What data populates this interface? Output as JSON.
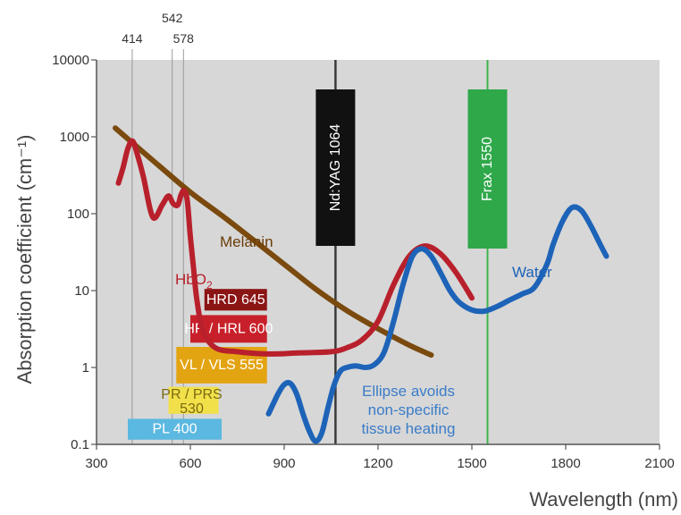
{
  "chart_data": {
    "type": "line",
    "xlabel": "Wavelength (nm)",
    "ylabel": "Absorption coefficient (cm⁻¹)",
    "xlim": [
      300,
      2100
    ],
    "ylim": [
      0.1,
      10000
    ],
    "y_scale": "log",
    "x_ticks": [
      "300",
      "600",
      "900",
      "1200",
      "1500",
      "1800",
      "2100"
    ],
    "y_ticks": [
      {
        "value": 10000,
        "label": "10000"
      },
      {
        "value": 1000,
        "label": "1000"
      },
      {
        "value": 100,
        "label": "100"
      },
      {
        "value": 10,
        "label": "10"
      },
      {
        "value": 1,
        "label": "1"
      },
      {
        "value": 0.1,
        "label": "0.1"
      }
    ],
    "reference_lines": [
      {
        "value": 414,
        "label": "414"
      },
      {
        "value": 542,
        "label": "542"
      },
      {
        "value": 578,
        "label": "578"
      }
    ],
    "series": [
      {
        "name": "Melanin",
        "color": "#7a4a0e",
        "x": [
          360,
          420,
          500,
          600,
          700,
          800,
          900,
          1000,
          1100,
          1200,
          1300,
          1370
        ],
        "y": [
          1300,
          800,
          420,
          190,
          95,
          46,
          22,
          10.5,
          5.5,
          3.2,
          1.95,
          1.45
        ]
      },
      {
        "name": "HbO",
        "color": "#b8202c",
        "x": [
          370,
          385,
          400,
          415,
          430,
          450,
          480,
          510,
          530,
          545,
          560,
          570,
          580,
          590,
          600,
          610,
          620,
          640,
          680,
          750,
          850,
          950,
          1050,
          1100,
          1150,
          1200,
          1250,
          1300,
          1350,
          1400,
          1450,
          1500
        ],
        "y": [
          250,
          400,
          700,
          880,
          600,
          300,
          90,
          130,
          170,
          135,
          130,
          175,
          200,
          150,
          50,
          20,
          8,
          3,
          1.8,
          1.6,
          1.5,
          1.55,
          1.6,
          1.8,
          2.3,
          4,
          12,
          28,
          38,
          30,
          17,
          8
        ]
      },
      {
        "name": "Water",
        "color": "#1d63b8",
        "x": [
          850,
          880,
          900,
          920,
          940,
          960,
          980,
          1000,
          1020,
          1040,
          1060,
          1080,
          1100,
          1130,
          1160,
          1190,
          1220,
          1250,
          1280,
          1310,
          1340,
          1370,
          1400,
          1430,
          1460,
          1500,
          1540,
          1580,
          1620,
          1660,
          1700,
          1740,
          1760,
          1790,
          1820,
          1850,
          1880,
          1910,
          1930
        ],
        "y": [
          0.25,
          0.45,
          0.6,
          0.62,
          0.45,
          0.25,
          0.15,
          0.11,
          0.14,
          0.3,
          0.6,
          0.9,
          1.0,
          1.05,
          1.0,
          1.1,
          1.6,
          4,
          12,
          28,
          35,
          28,
          17,
          10,
          7,
          5.6,
          5.4,
          6.2,
          7.5,
          9,
          11,
          22,
          40,
          80,
          120,
          110,
          70,
          40,
          28
        ]
      }
    ],
    "laser_lines": [
      {
        "name": "Nd:YAG 1064",
        "x": 1064,
        "color": "#3a3a3a",
        "box_color": "#111111"
      },
      {
        "name": "Frax 1550",
        "x": 1550,
        "color": "#3cb54a",
        "box_color": "#2fa84a"
      }
    ],
    "annotations": {
      "melanin_label": "Melanin",
      "hbo2_label": "HbO",
      "hbo2_sub": "2",
      "water_label": "Water",
      "ellipse_lines": [
        "Ellipse avoids",
        "non-specific",
        "tissue heating"
      ]
    },
    "filter_boxes": [
      {
        "label": "HRD 645",
        "x0": 645,
        "x1": 845,
        "ylo": 5.5,
        "yhi": 10.5,
        "color": "#8b1414",
        "text_color": "#ffffff"
      },
      {
        "label": "HR / HRL 600",
        "x0": 600,
        "x1": 845,
        "ylo": 2.1,
        "yhi": 4.8,
        "color": "#c8202a",
        "text_color": "#ffffff"
      },
      {
        "label": "VL / VLS 555",
        "x0": 555,
        "x1": 845,
        "ylo": 0.62,
        "yhi": 1.85,
        "color": "#e3a412",
        "text_color": "#ffffff"
      },
      {
        "label": "PR / PRS|530",
        "x0": 530,
        "x1": 690,
        "ylo": 0.25,
        "yhi": 0.56,
        "color": "#f2e04a",
        "text_color": "#7a6a10"
      },
      {
        "label": "PL 400",
        "x0": 400,
        "x1": 700,
        "ylo": 0.115,
        "yhi": 0.215,
        "color": "#5bb8e0",
        "text_color": "#ffffff"
      }
    ],
    "grid": false,
    "legend": "none"
  }
}
